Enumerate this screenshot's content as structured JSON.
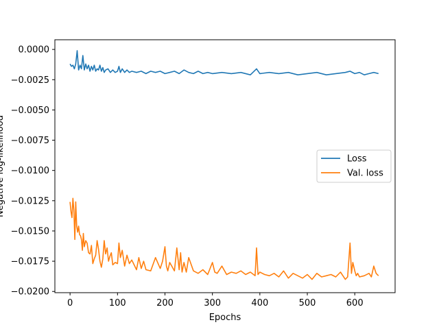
{
  "chart_data": {
    "type": "line",
    "xlabel": "Epochs",
    "ylabel": "Negative log-likelihood",
    "xlim": [
      -32,
      685
    ],
    "ylim": [
      -0.0201,
      0.0008
    ],
    "x_ticks": [
      0,
      100,
      200,
      300,
      400,
      500,
      600
    ],
    "y_ticks": [
      0.0,
      -0.0025,
      -0.005,
      -0.0075,
      -0.01,
      -0.0125,
      -0.015,
      -0.0175,
      -0.02
    ],
    "x_tick_labels": [
      "0",
      "100",
      "200",
      "300",
      "400",
      "500",
      "600"
    ],
    "y_tick_labels": [
      "0.0000",
      "−0.0025",
      "−0.0050",
      "−0.0075",
      "−0.0100",
      "−0.0125",
      "−0.0150",
      "−0.0175",
      "−0.0200"
    ],
    "grid": false,
    "legend_position": "center-right",
    "series": [
      {
        "name": "Loss",
        "color": "#1f77b4",
        "x": [
          0,
          3,
          6,
          9,
          12,
          15,
          18,
          21,
          24,
          27,
          30,
          33,
          36,
          39,
          42,
          45,
          48,
          51,
          54,
          57,
          60,
          63,
          66,
          69,
          72,
          75,
          80,
          85,
          90,
          95,
          100,
          103,
          106,
          110,
          115,
          120,
          125,
          130,
          140,
          150,
          160,
          170,
          180,
          190,
          200,
          210,
          220,
          230,
          240,
          250,
          260,
          270,
          280,
          290,
          300,
          320,
          340,
          360,
          380,
          393,
          400,
          420,
          440,
          460,
          480,
          500,
          520,
          540,
          560,
          580,
          590,
          600,
          610,
          620,
          630,
          640,
          650
        ],
        "y": [
          -0.0012,
          -0.0014,
          -0.0013,
          -0.0016,
          -0.0012,
          -0.0001,
          -0.0017,
          -0.0013,
          -0.0016,
          -0.0005,
          -0.0017,
          -0.0012,
          -0.0016,
          -0.0013,
          -0.0018,
          -0.0014,
          -0.0017,
          -0.0013,
          -0.0018,
          -0.0016,
          -0.0017,
          -0.0013,
          -0.0018,
          -0.0015,
          -0.0019,
          -0.0017,
          -0.0016,
          -0.0019,
          -0.0017,
          -0.0019,
          -0.0018,
          -0.0014,
          -0.0019,
          -0.0016,
          -0.0019,
          -0.0017,
          -0.0019,
          -0.0018,
          -0.0019,
          -0.0018,
          -0.002,
          -0.0018,
          -0.0019,
          -0.0018,
          -0.002,
          -0.0019,
          -0.0018,
          -0.002,
          -0.0017,
          -0.0019,
          -0.002,
          -0.0018,
          -0.002,
          -0.0019,
          -0.002,
          -0.0019,
          -0.002,
          -0.0019,
          -0.0021,
          -0.0016,
          -0.002,
          -0.0019,
          -0.002,
          -0.0019,
          -0.0021,
          -0.002,
          -0.0019,
          -0.0021,
          -0.002,
          -0.0019,
          -0.0018,
          -0.002,
          -0.0019,
          -0.0021,
          -0.002,
          -0.0019,
          -0.002
        ]
      },
      {
        "name": "Val. loss",
        "color": "#ff7f0e",
        "x": [
          0,
          2,
          4,
          6,
          8,
          10,
          12,
          14,
          16,
          18,
          20,
          22,
          24,
          26,
          28,
          30,
          33,
          36,
          39,
          42,
          45,
          48,
          51,
          54,
          57,
          60,
          63,
          66,
          69,
          72,
          75,
          78,
          81,
          84,
          87,
          90,
          95,
          100,
          103,
          106,
          110,
          115,
          120,
          125,
          130,
          140,
          145,
          150,
          155,
          160,
          170,
          180,
          190,
          195,
          200,
          203,
          206,
          210,
          220,
          225,
          230,
          233,
          236,
          240,
          245,
          250,
          260,
          270,
          280,
          290,
          300,
          305,
          310,
          320,
          330,
          340,
          350,
          360,
          370,
          380,
          390,
          393,
          396,
          400,
          410,
          420,
          430,
          440,
          450,
          460,
          470,
          480,
          490,
          500,
          510,
          520,
          530,
          540,
          550,
          560,
          570,
          580,
          585,
          590,
          593,
          596,
          600,
          603,
          606,
          610,
          620,
          630,
          635,
          640,
          645,
          650
        ],
        "y": [
          -0.0126,
          -0.0134,
          -0.0139,
          -0.0123,
          -0.0133,
          -0.0157,
          -0.0126,
          -0.0146,
          -0.0151,
          -0.0146,
          -0.0153,
          -0.0154,
          -0.0157,
          -0.0166,
          -0.0152,
          -0.0163,
          -0.0158,
          -0.016,
          -0.0168,
          -0.0169,
          -0.0162,
          -0.0177,
          -0.0173,
          -0.017,
          -0.0158,
          -0.0165,
          -0.0175,
          -0.018,
          -0.0173,
          -0.0158,
          -0.0169,
          -0.0164,
          -0.0175,
          -0.0171,
          -0.0168,
          -0.0178,
          -0.0176,
          -0.0177,
          -0.016,
          -0.0172,
          -0.0166,
          -0.0179,
          -0.017,
          -0.0177,
          -0.0174,
          -0.0182,
          -0.0172,
          -0.0181,
          -0.0175,
          -0.0182,
          -0.0183,
          -0.0172,
          -0.0181,
          -0.0175,
          -0.0163,
          -0.0179,
          -0.0183,
          -0.0176,
          -0.0183,
          -0.0164,
          -0.0182,
          -0.0168,
          -0.0184,
          -0.0176,
          -0.0184,
          -0.0172,
          -0.0183,
          -0.0185,
          -0.0182,
          -0.0186,
          -0.0176,
          -0.0184,
          -0.0185,
          -0.0179,
          -0.0186,
          -0.0184,
          -0.0185,
          -0.0183,
          -0.0186,
          -0.0184,
          -0.0187,
          -0.0164,
          -0.0186,
          -0.0184,
          -0.0186,
          -0.0187,
          -0.0185,
          -0.0188,
          -0.0183,
          -0.0189,
          -0.0185,
          -0.0187,
          -0.0189,
          -0.0186,
          -0.019,
          -0.0185,
          -0.0188,
          -0.0187,
          -0.0186,
          -0.0188,
          -0.0184,
          -0.019,
          -0.0188,
          -0.016,
          -0.0185,
          -0.0176,
          -0.0183,
          -0.0187,
          -0.0185,
          -0.0188,
          -0.0187,
          -0.0185,
          -0.0188,
          -0.0179,
          -0.0185,
          -0.0187
        ]
      }
    ]
  }
}
